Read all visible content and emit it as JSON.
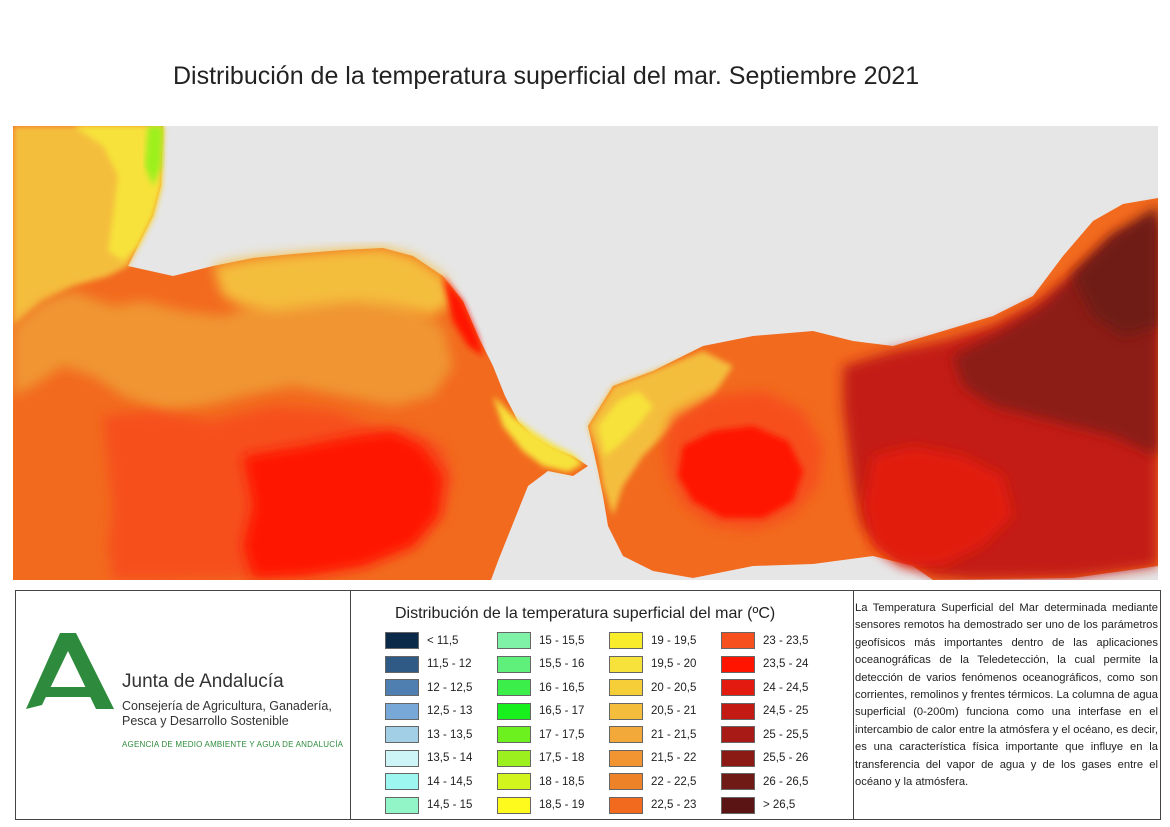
{
  "title": "Distribución de la temperatura superficial del mar. Septiembre 2021",
  "colors": {
    "land": "#e6e6e6",
    "logo_green": "#2e8b3d",
    "very_warm": "#8b1a14",
    "warm": "#e02010",
    "orange": "#f26a1e",
    "yellow": "#f7e23b"
  },
  "logo": {
    "icon": "junta-andalucia-logo-icon",
    "name": "Junta de Andalucía",
    "department": "Consejería de Agricultura, Ganadería, Pesca y Desarrollo Sostenible",
    "agency": "AGENCIA DE MEDIO AMBIENTE Y AGUA DE ANDALUCÍA"
  },
  "legend": {
    "title": "Distribución de la temperatura superficial del mar (ºC)",
    "items": [
      {
        "label": "< 11,5",
        "color": "#0b2a4a"
      },
      {
        "label": "11,5 - 12",
        "color": "#2f5a86"
      },
      {
        "label": "12 - 12,5",
        "color": "#4f7fb0"
      },
      {
        "label": "12,5 - 13",
        "color": "#78a8d8"
      },
      {
        "label": "13 - 13,5",
        "color": "#a3cfe6"
      },
      {
        "label": "13,5 - 14",
        "color": "#cdf4f7"
      },
      {
        "label": "14 - 14,5",
        "color": "#9df7f0"
      },
      {
        "label": "14,5 - 15",
        "color": "#92f5c8"
      },
      {
        "label": "15 - 15,5",
        "color": "#7ff2a8"
      },
      {
        "label": "15,5 - 16",
        "color": "#5ef07a"
      },
      {
        "label": "16 - 16,5",
        "color": "#3cee4a"
      },
      {
        "label": "16,5 - 17",
        "color": "#18f01e"
      },
      {
        "label": "17 - 17,5",
        "color": "#6cf01e"
      },
      {
        "label": "17,5 - 18",
        "color": "#9cf01e"
      },
      {
        "label": "18 - 18,5",
        "color": "#d2f51e"
      },
      {
        "label": "18,5 - 19",
        "color": "#fffa1e"
      },
      {
        "label": "19 - 19,5",
        "color": "#f9ec2a"
      },
      {
        "label": "19,5 - 20",
        "color": "#f7e23b"
      },
      {
        "label": "20 - 20,5",
        "color": "#f5ce38"
      },
      {
        "label": "20,5 - 21",
        "color": "#f4be3c"
      },
      {
        "label": "21 - 21,5",
        "color": "#f2a93a"
      },
      {
        "label": "21,5 - 22",
        "color": "#f09532"
      },
      {
        "label": "22 - 22,5",
        "color": "#ee8228"
      },
      {
        "label": "22,5 - 23",
        "color": "#f26a1e"
      },
      {
        "label": "23 - 23,5",
        "color": "#f6501e"
      },
      {
        "label": "23,5 - 24",
        "color": "#ff1400"
      },
      {
        "label": "24 - 24,5",
        "color": "#e21a10"
      },
      {
        "label": "24,5 - 25",
        "color": "#c31a14"
      },
      {
        "label": "25 - 25,5",
        "color": "#a71a16"
      },
      {
        "label": "25,5 - 26",
        "color": "#8b1a14"
      },
      {
        "label": "26 - 26,5",
        "color": "#701a16"
      },
      {
        "label": "> 26,5",
        "color": "#5a1414"
      }
    ]
  },
  "description": "La Temperatura Superficial del Mar determinada mediante sensores remotos ha demostrado ser uno de los parámetros geofísicos más importantes dentro de las aplicaciones oceanográficas de la Teledetección, la cual permite la detección de varios fenómenos oceanográficos, como son corrientes, remolinos y frentes térmicos. La columna de agua superficial (0-200m) funciona como una interfase en el intercambio de calor entre la atmósfera y el océano, es decir, es una característica física importante que influye en la transferencia del vapor de agua y de los gases entre el océano y la atmósfera."
}
